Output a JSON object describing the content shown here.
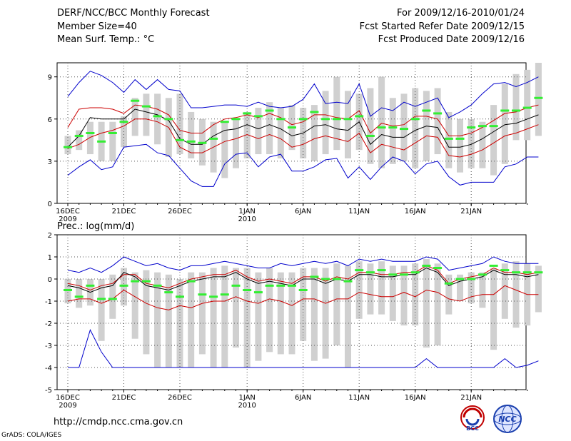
{
  "header": {
    "title": "DERF/NCC/BCC Monthly Forecast",
    "member_size": "Member Size=40",
    "variable": "Mean Surf. Temp.: °C",
    "period": "For 2009/12/16-2010/01/24",
    "fcst_started": "Fcst Started Refer Date 2009/12/15",
    "fcst_produced": "Fcst Produced Date 2009/12/16"
  },
  "footer": {
    "url": "http://cmdp.ncc.cma.gov.cn",
    "grads": "GrADS: COLA/IGES",
    "logo_left_text": "BCC",
    "logo_right_text": "NCC"
  },
  "colors": {
    "ensemble_box": "#d0d0d0",
    "mean_dash": "#33ee33",
    "median_line": "#000000",
    "spread_line": "#cc0000",
    "extreme_line": "#0000cc",
    "grid": "#555555"
  },
  "chart_data": [
    {
      "type": "box-line",
      "title": "Mean Surf. Temp.: °C",
      "ylim": [
        0,
        10
      ],
      "yticks": [
        0,
        3,
        6,
        9
      ],
      "xticks": [
        {
          "day": 0,
          "label": "16DEC",
          "sub": "2009"
        },
        {
          "day": 5,
          "label": "21DEC",
          "sub": ""
        },
        {
          "day": 10,
          "label": "26DEC",
          "sub": ""
        },
        {
          "day": 16,
          "label": "1JAN",
          "sub": "2010"
        },
        {
          "day": 21,
          "label": "6JAN",
          "sub": ""
        },
        {
          "day": 26,
          "label": "11JAN",
          "sub": ""
        },
        {
          "day": 31,
          "label": "16JAN",
          "sub": ""
        },
        {
          "day": 36,
          "label": "21JAN",
          "sub": ""
        }
      ],
      "box_low": [
        3.5,
        3.8,
        3.5,
        3.0,
        3.0,
        4.0,
        4.8,
        4.8,
        4.2,
        3.3,
        3.5,
        3.2,
        2.7,
        2.2,
        1.8,
        2.5,
        3.2,
        3.5,
        3.5,
        3.2,
        3.8,
        3.2,
        3.0,
        3.5,
        3.8,
        3.2,
        3.8,
        2.8,
        2.5,
        2.8,
        3.0,
        2.5,
        3.0,
        3.5,
        2.5,
        2.2,
        2.5,
        2.5,
        2.0,
        2.8,
        4.5,
        4.5,
        4.8
      ],
      "box_high": [
        4.8,
        5.2,
        5.8,
        5.8,
        5.8,
        6.2,
        7.5,
        7.8,
        7.8,
        7.5,
        7.8,
        6.5,
        6.0,
        5.8,
        5.8,
        6.0,
        6.5,
        6.8,
        7.2,
        6.8,
        7.0,
        6.8,
        7.0,
        8.0,
        9.0,
        8.0,
        7.8,
        8.2,
        9.0,
        7.5,
        7.8,
        8.2,
        8.0,
        8.2,
        6.5,
        6.0,
        6.0,
        5.8,
        7.0,
        8.5,
        9.2,
        9.5,
        10.0
      ],
      "mean": [
        4.0,
        4.8,
        5.0,
        4.4,
        5.0,
        5.8,
        7.3,
        6.9,
        6.2,
        6.0,
        4.5,
        4.4,
        4.3,
        4.6,
        5.8,
        6.0,
        6.4,
        6.2,
        6.6,
        6.0,
        5.4,
        6.0,
        6.5,
        6.0,
        6.0,
        6.0,
        6.2,
        4.8,
        5.4,
        5.4,
        5.3,
        6.0,
        6.6,
        6.4,
        4.6,
        4.6,
        5.4,
        5.5,
        5.5,
        6.6,
        6.6,
        6.8,
        7.5
      ],
      "median": [
        4.0,
        4.8,
        6.1,
        6.0,
        6.0,
        6.0,
        6.7,
        6.5,
        6.3,
        5.9,
        4.6,
        4.2,
        4.2,
        4.8,
        5.2,
        5.3,
        5.6,
        5.3,
        5.6,
        5.3,
        4.8,
        5.0,
        5.5,
        5.6,
        5.3,
        5.2,
        5.8,
        4.2,
        4.9,
        4.7,
        4.7,
        5.2,
        5.5,
        5.4,
        4.0,
        4.0,
        4.2,
        4.6,
        5.1,
        5.6,
        5.7,
        6.0,
        6.3
      ],
      "upper": [
        5.4,
        6.7,
        6.8,
        6.8,
        6.7,
        6.4,
        7.0,
        6.9,
        6.7,
        6.3,
        5.2,
        5.0,
        5.0,
        5.6,
        6.0,
        6.1,
        6.3,
        6.1,
        6.4,
        6.1,
        5.6,
        5.8,
        6.3,
        6.3,
        6.1,
        6.0,
        6.6,
        5.0,
        5.7,
        5.5,
        5.6,
        6.2,
        6.2,
        6.0,
        4.8,
        4.8,
        5.0,
        5.4,
        5.9,
        6.4,
        6.5,
        6.8,
        7.0
      ],
      "lower": [
        3.9,
        4.2,
        4.7,
        5.0,
        5.2,
        5.5,
        6.0,
        6.0,
        5.8,
        5.4,
        4.0,
        3.6,
        3.6,
        4.0,
        4.4,
        4.6,
        4.9,
        4.6,
        4.9,
        4.6,
        4.0,
        4.2,
        4.6,
        4.8,
        4.6,
        4.4,
        5.0,
        3.6,
        4.2,
        4.0,
        3.8,
        4.3,
        4.8,
        4.7,
        3.4,
        3.3,
        3.5,
        3.8,
        4.3,
        4.8,
        5.0,
        5.3,
        5.6
      ],
      "max": [
        7.6,
        8.6,
        9.4,
        9.1,
        8.6,
        7.9,
        8.8,
        8.1,
        8.8,
        8.1,
        8.0,
        6.8,
        6.8,
        6.9,
        7.0,
        7.0,
        6.9,
        7.2,
        6.9,
        6.8,
        6.9,
        7.4,
        8.5,
        7.1,
        7.2,
        7.1,
        8.5,
        6.2,
        6.8,
        6.6,
        7.2,
        6.9,
        7.2,
        7.5,
        6.1,
        6.5,
        7.0,
        7.8,
        8.5,
        8.6,
        8.3,
        8.6,
        9.0
      ],
      "min": [
        2.0,
        2.6,
        3.1,
        2.4,
        2.6,
        4.0,
        4.1,
        4.2,
        3.6,
        3.4,
        2.5,
        1.6,
        1.2,
        1.2,
        2.8,
        3.5,
        3.6,
        2.6,
        3.3,
        3.5,
        2.3,
        2.3,
        2.6,
        3.1,
        3.2,
        1.8,
        2.6,
        1.7,
        2.6,
        3.3,
        3.0,
        2.1,
        2.8,
        3.0,
        1.9,
        1.3,
        1.5,
        1.5,
        1.5,
        2.6,
        2.8,
        3.3,
        3.3
      ]
    },
    {
      "type": "box-line",
      "title": "Prec.: log(mm/d)",
      "ylim": [
        -5,
        2
      ],
      "yticks": [
        -5,
        -4,
        -3,
        -2,
        -1,
        0,
        1,
        2
      ],
      "xticks": [
        {
          "day": 0,
          "label": "16DEC",
          "sub": "2009"
        },
        {
          "day": 5,
          "label": "21DEC",
          "sub": ""
        },
        {
          "day": 10,
          "label": "26DEC",
          "sub": ""
        },
        {
          "day": 16,
          "label": "1JAN",
          "sub": "2010"
        },
        {
          "day": 21,
          "label": "6JAN",
          "sub": ""
        },
        {
          "day": 26,
          "label": "11JAN",
          "sub": ""
        },
        {
          "day": 31,
          "label": "16JAN",
          "sub": ""
        },
        {
          "day": 36,
          "label": "21JAN",
          "sub": ""
        }
      ],
      "box_low": [
        -1.1,
        -1.3,
        -1.2,
        -2.8,
        -1.8,
        -1.2,
        -2.7,
        -3.4,
        -4.0,
        -4.0,
        -4.0,
        -4.0,
        -3.4,
        -4.0,
        -4.0,
        -3.1,
        -4.0,
        -3.7,
        -3.3,
        -3.4,
        -3.4,
        -2.8,
        -3.7,
        -3.6,
        -3.0,
        -4.0,
        -1.8,
        -1.6,
        -1.6,
        -1.9,
        -2.1,
        -2.1,
        -3.1,
        -3.0,
        -1.6,
        -1.0,
        -1.1,
        -1.3,
        -3.2,
        -1.8,
        -2.2,
        -2.1,
        -1.5
      ],
      "box_high": [
        0.0,
        0.0,
        0.0,
        0.0,
        0.2,
        0.5,
        0.3,
        0.4,
        0.3,
        0.2,
        0.0,
        0.3,
        0.3,
        0.5,
        0.6,
        0.5,
        0.5,
        0.3,
        0.5,
        0.3,
        0.3,
        0.5,
        0.5,
        0.5,
        0.7,
        0.6,
        0.8,
        0.7,
        0.8,
        0.6,
        0.6,
        0.7,
        0.9,
        0.7,
        0.2,
        0.2,
        0.3,
        0.3,
        0.5,
        0.7,
        0.8,
        0.7,
        0.6
      ],
      "mean": [
        -0.5,
        -0.8,
        -0.3,
        -0.9,
        -0.9,
        -0.3,
        -0.1,
        -0.1,
        -0.3,
        -0.6,
        -0.8,
        -0.1,
        -0.7,
        -0.8,
        -0.7,
        -0.3,
        -0.5,
        -0.6,
        -0.3,
        -0.3,
        -0.3,
        -0.5,
        0.1,
        0.0,
        0.0,
        -0.1,
        0.4,
        0.3,
        0.4,
        0.2,
        0.2,
        0.3,
        0.6,
        0.5,
        -0.2,
        0.0,
        0.0,
        0.2,
        0.6,
        0.4,
        0.3,
        0.3,
        0.3
      ],
      "median": [
        -0.3,
        -0.4,
        -0.6,
        -0.4,
        -0.3,
        0.3,
        0.1,
        -0.3,
        -0.4,
        -0.5,
        -0.3,
        -0.1,
        0.0,
        0.1,
        0.1,
        0.3,
        0.0,
        -0.2,
        -0.1,
        -0.2,
        -0.3,
        0.0,
        0.0,
        -0.2,
        0.0,
        -0.1,
        0.2,
        0.2,
        0.1,
        0.1,
        0.2,
        0.2,
        0.5,
        0.3,
        -0.3,
        -0.1,
        0.0,
        0.1,
        0.4,
        0.2,
        0.2,
        0.1,
        0.2
      ],
      "upper": [
        -0.2,
        -0.3,
        -0.5,
        -0.3,
        -0.2,
        0.2,
        0.2,
        -0.2,
        -0.3,
        -0.4,
        -0.2,
        0.0,
        0.1,
        0.2,
        0.2,
        0.4,
        0.1,
        -0.1,
        0.0,
        -0.1,
        -0.2,
        0.1,
        0.1,
        -0.1,
        0.1,
        0.0,
        0.3,
        0.3,
        0.2,
        0.2,
        0.3,
        0.3,
        0.6,
        0.4,
        -0.2,
        0.0,
        0.1,
        0.2,
        0.5,
        0.3,
        0.3,
        0.2,
        0.3
      ],
      "lower": [
        -1.0,
        -0.9,
        -0.9,
        -1.1,
        -0.9,
        -0.5,
        -0.8,
        -1.1,
        -1.3,
        -1.4,
        -1.2,
        -1.3,
        -1.1,
        -1.0,
        -1.0,
        -0.8,
        -1.0,
        -1.1,
        -0.9,
        -1.0,
        -1.2,
        -0.9,
        -0.9,
        -1.1,
        -0.9,
        -0.9,
        -0.6,
        -0.7,
        -0.8,
        -0.8,
        -0.6,
        -0.8,
        -0.5,
        -0.6,
        -0.9,
        -1.0,
        -0.8,
        -0.7,
        -0.7,
        -0.3,
        -0.5,
        -0.7,
        -0.7
      ],
      "max": [
        0.4,
        0.3,
        0.5,
        0.3,
        0.6,
        1.0,
        0.8,
        0.6,
        0.7,
        0.5,
        0.4,
        0.6,
        0.6,
        0.7,
        0.8,
        0.7,
        0.6,
        0.5,
        0.5,
        0.7,
        0.6,
        0.7,
        0.8,
        0.7,
        0.8,
        0.6,
        0.9,
        0.8,
        0.9,
        0.8,
        0.8,
        0.8,
        1.0,
        0.9,
        0.4,
        0.5,
        0.6,
        0.7,
        1.0,
        0.8,
        0.7,
        0.7,
        0.7
      ],
      "min": [
        -4.0,
        -4.0,
        -2.3,
        -3.3,
        -4.0,
        -4.0,
        -4.0,
        -4.0,
        -4.0,
        -4.0,
        -4.0,
        -4.0,
        -4.0,
        -4.0,
        -4.0,
        -4.0,
        -4.0,
        -4.0,
        -4.0,
        -4.0,
        -4.0,
        -4.0,
        -4.0,
        -4.0,
        -4.0,
        -4.0,
        -4.0,
        -4.0,
        -4.0,
        -4.0,
        -4.0,
        -4.0,
        -3.6,
        -4.0,
        -4.0,
        -4.0,
        -4.0,
        -4.0,
        -4.0,
        -3.6,
        -4.0,
        -3.9,
        -3.7
      ]
    }
  ]
}
